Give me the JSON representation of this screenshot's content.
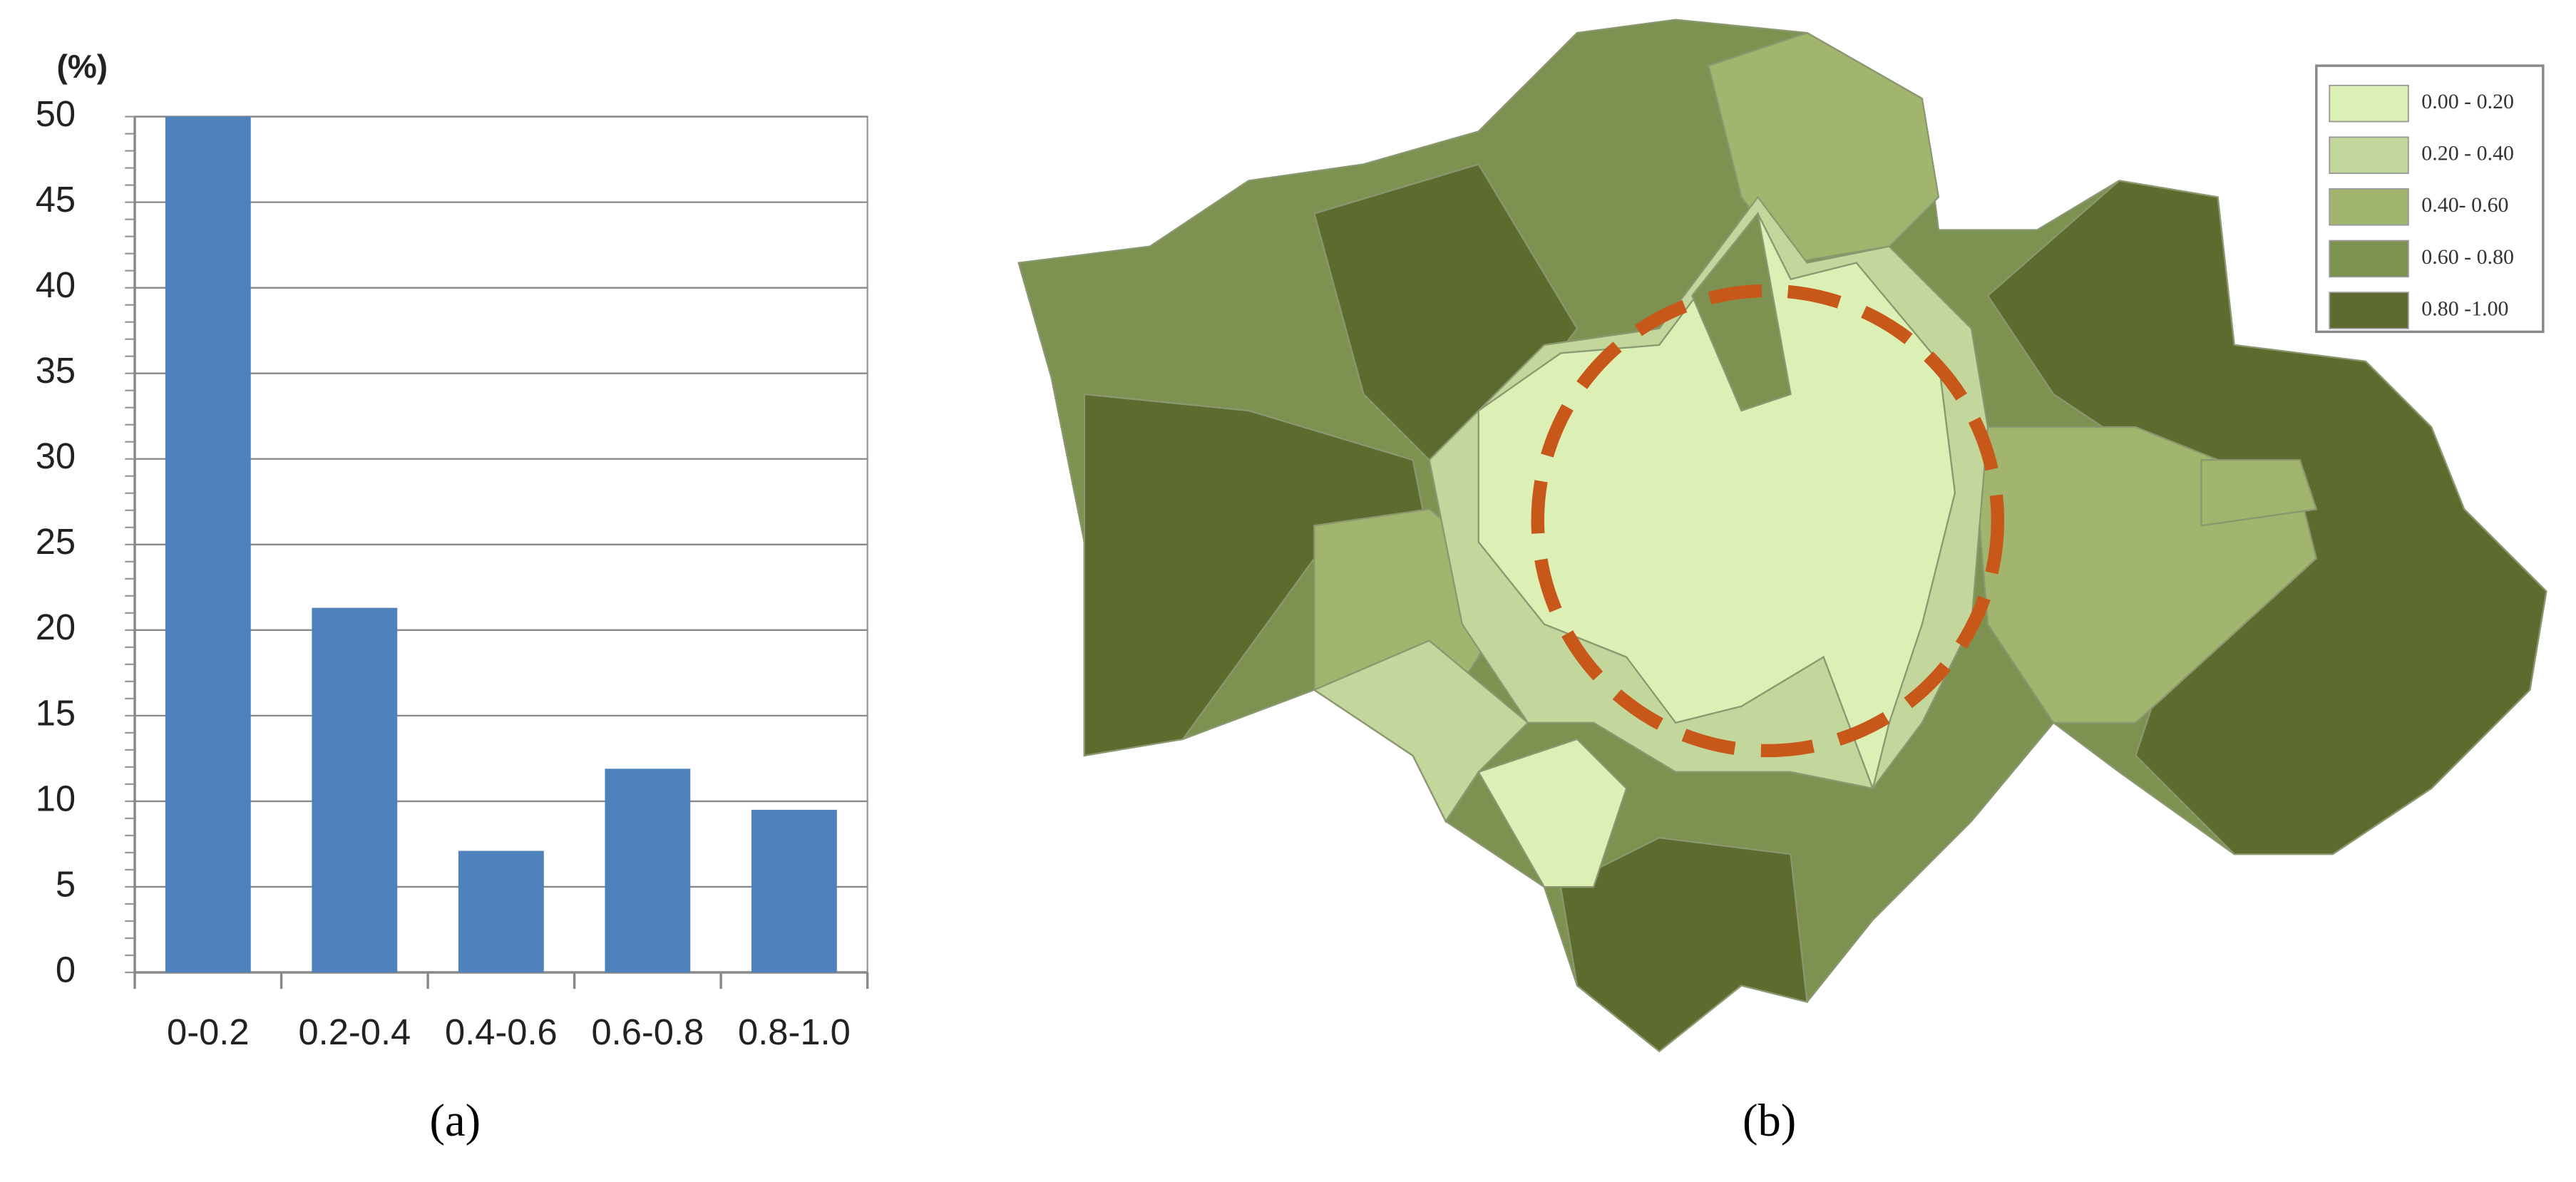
{
  "chart_data": [
    {
      "type": "bar",
      "y_label": "(%)",
      "caption": "(a)",
      "categories": [
        "0-0.2",
        "0.2-0.4",
        "0.4-0.6",
        "0.6-0.8",
        "0.8-1.0"
      ],
      "values": [
        50,
        21.3,
        7.1,
        11.9,
        9.5
      ],
      "color": "#4f81bd",
      "ylim": [
        0,
        50
      ],
      "yticks": [
        0,
        5,
        10,
        15,
        20,
        25,
        30,
        35,
        40,
        45,
        50
      ],
      "grid": true
    },
    {
      "type": "map",
      "caption": "(b)",
      "legend_position": "upper right",
      "legend": [
        {
          "name": "0.00 - 0.20",
          "color": "#dcefb5"
        },
        {
          "name": "0.20 - 0.40",
          "color": "#c3d69b"
        },
        {
          "name": "0.40- 0.60",
          "color": "#a2b56e"
        },
        {
          "name": "0.60 - 0.80",
          "color": "#7d9150"
        },
        {
          "name": "0.80 -1.00",
          "color": "#5d6b2e"
        }
      ]
    }
  ]
}
